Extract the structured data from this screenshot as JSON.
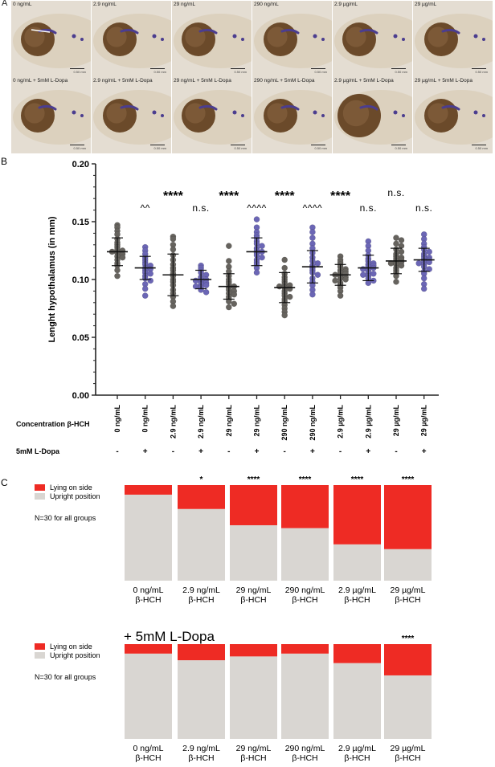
{
  "panel_a": {
    "letter": "A",
    "top_row_labels": [
      "0 ng/mL",
      "2.9 ng/mL",
      "29 ng/mL",
      "290 ng/mL",
      "2.9 µg/mL",
      "29 µg/mL"
    ],
    "bottom_row_labels": [
      "0 ng/mL + 5mM L-Dopa",
      "2.9 ng/mL + 5mM L-Dopa",
      "29 ng/mL + 5mM L-Dopa",
      "290 ng/mL + 5mM L-Dopa",
      "2.9 µg/mL + 5mM L-Dopa",
      "29 µg/mL + 5mM L-Dopa"
    ],
    "scale_bar_text": "0.50 mm",
    "colors": {
      "background": "#e4ddd2",
      "eye": "#6b4a2a",
      "stain": "#4b3d8f"
    }
  },
  "chart_data": [
    {
      "panel": "B",
      "type": "scatter",
      "ylabel": "Lenght hypothalamus (in mm)",
      "ylim": [
        0,
        0.2
      ],
      "yticks": [
        "0.00",
        "0.05",
        "0.10",
        "0.15",
        "0.20"
      ],
      "categories": [
        "0 ng/mL",
        "0 ng/mL",
        "2.9 ng/mL",
        "2.9 ng/mL",
        "29 ng/mL",
        "29 ng/mL",
        "290 ng/mL",
        "290 ng/mL",
        "2.9 µg/mL",
        "2.9 µg/mL",
        "29 µg/mL",
        "29 µg/mL"
      ],
      "ldopa": [
        "-",
        "+",
        "-",
        "+",
        "-",
        "+",
        "-",
        "+",
        "-",
        "+",
        "-",
        "+"
      ],
      "row_labels": {
        "concentration": "Concentration β-HCH",
        "ldopa": "5mM L-Dopa"
      },
      "means": [
        0.124,
        0.11,
        0.104,
        0.1,
        0.094,
        0.124,
        0.093,
        0.111,
        0.104,
        0.11,
        0.116,
        0.117
      ],
      "sd": [
        0.012,
        0.01,
        0.018,
        0.008,
        0.011,
        0.012,
        0.013,
        0.014,
        0.009,
        0.011,
        0.011,
        0.01
      ],
      "points": [
        [
          0.147,
          0.145,
          0.142,
          0.139,
          0.135,
          0.132,
          0.13,
          0.128,
          0.126,
          0.125,
          0.124,
          0.123,
          0.122,
          0.12,
          0.119,
          0.117,
          0.114,
          0.112,
          0.108,
          0.103
        ],
        [
          0.128,
          0.125,
          0.122,
          0.119,
          0.117,
          0.115,
          0.113,
          0.112,
          0.11,
          0.109,
          0.108,
          0.106,
          0.105,
          0.103,
          0.101,
          0.099,
          0.096,
          0.092,
          0.086
        ],
        [
          0.137,
          0.135,
          0.13,
          0.126,
          0.121,
          0.117,
          0.113,
          0.11,
          0.108,
          0.105,
          0.103,
          0.1,
          0.098,
          0.095,
          0.091,
          0.088,
          0.085,
          0.081,
          0.077
        ],
        [
          0.112,
          0.11,
          0.108,
          0.106,
          0.104,
          0.102,
          0.101,
          0.1,
          0.099,
          0.098,
          0.097,
          0.096,
          0.095,
          0.094,
          0.093,
          0.091,
          0.089
        ],
        [
          0.129,
          0.116,
          0.111,
          0.107,
          0.103,
          0.1,
          0.098,
          0.096,
          0.094,
          0.093,
          0.091,
          0.09,
          0.088,
          0.087,
          0.085,
          0.083,
          0.081,
          0.079,
          0.076
        ],
        [
          0.152,
          0.145,
          0.141,
          0.138,
          0.136,
          0.133,
          0.131,
          0.129,
          0.127,
          0.125,
          0.124,
          0.123,
          0.121,
          0.119,
          0.117,
          0.115,
          0.113,
          0.11,
          0.106
        ],
        [
          0.117,
          0.11,
          0.105,
          0.102,
          0.1,
          0.098,
          0.096,
          0.095,
          0.094,
          0.093,
          0.092,
          0.09,
          0.088,
          0.086,
          0.085,
          0.083,
          0.081,
          0.078,
          0.075,
          0.072,
          0.069
        ],
        [
          0.145,
          0.141,
          0.136,
          0.131,
          0.127,
          0.123,
          0.119,
          0.116,
          0.114,
          0.112,
          0.11,
          0.108,
          0.106,
          0.104,
          0.101,
          0.098,
          0.095,
          0.091,
          0.087
        ],
        [
          0.12,
          0.117,
          0.115,
          0.113,
          0.111,
          0.109,
          0.108,
          0.107,
          0.106,
          0.105,
          0.104,
          0.103,
          0.102,
          0.101,
          0.1,
          0.099,
          0.097,
          0.095,
          0.093,
          0.09,
          0.086
        ],
        [
          0.133,
          0.129,
          0.125,
          0.121,
          0.118,
          0.116,
          0.114,
          0.113,
          0.112,
          0.111,
          0.11,
          0.109,
          0.108,
          0.106,
          0.105,
          0.104,
          0.103,
          0.101,
          0.099,
          0.097
        ],
        [
          0.136,
          0.134,
          0.131,
          0.129,
          0.126,
          0.124,
          0.122,
          0.12,
          0.119,
          0.118,
          0.117,
          0.116,
          0.115,
          0.114,
          0.113,
          0.112,
          0.11,
          0.108,
          0.106,
          0.103,
          0.098
        ],
        [
          0.139,
          0.135,
          0.131,
          0.128,
          0.126,
          0.124,
          0.122,
          0.12,
          0.119,
          0.118,
          0.117,
          0.116,
          0.115,
          0.114,
          0.113,
          0.111,
          0.109,
          0.107,
          0.105,
          0.101,
          0.096,
          0.092
        ]
      ],
      "annotations_top": [
        "",
        "^^",
        "****",
        "n.s.",
        "****",
        "^^^^",
        "****",
        "^^^^",
        "****",
        "n.s.",
        "n.s.",
        "n.s."
      ],
      "annotations_level": [
        0,
        1,
        0,
        1,
        0,
        1,
        0,
        1,
        0,
        1,
        0,
        1
      ],
      "colors": {
        "minus": "#66635e",
        "plus": "#6b66b5"
      }
    },
    {
      "panel": "C",
      "type": "bar",
      "stacked": true,
      "title": "",
      "categories": [
        "0 ng/mL\nβ-HCH",
        "2.9 ng/mL\nβ-HCH",
        "29 ng/mL\nβ-HCH",
        "290 ng/mL\nβ-HCH",
        "2.9 µg/mL\nβ-HCH",
        "29 µg/mL\nβ-HCH"
      ],
      "series": [
        {
          "name": "Lying on side",
          "values": [
            0.1,
            0.25,
            0.42,
            0.45,
            0.62,
            0.67
          ]
        },
        {
          "name": "Upright position",
          "values": [
            0.9,
            0.75,
            0.58,
            0.55,
            0.38,
            0.33
          ]
        }
      ],
      "significance": [
        "",
        "*",
        "****",
        "****",
        "****",
        "****"
      ],
      "note": "N=30 for all groups"
    },
    {
      "panel": "C2",
      "type": "bar",
      "stacked": true,
      "title": "+ 5mM L-Dopa",
      "categories": [
        "0 ng/mL\nβ-HCH",
        "2.9 ng/mL\nβ-HCH",
        "29 ng/mL\nβ-HCH",
        "290 ng/mL\nβ-HCH",
        "2.9 µg/mL\nβ-HCH",
        "29 µg/mL\nβ-HCH"
      ],
      "series": [
        {
          "name": "Lying on side",
          "values": [
            0.1,
            0.17,
            0.13,
            0.1,
            0.2,
            0.33
          ]
        },
        {
          "name": "Upright position",
          "values": [
            0.9,
            0.83,
            0.87,
            0.9,
            0.8,
            0.67
          ]
        }
      ],
      "significance": [
        "",
        "",
        "",
        "",
        "",
        "****"
      ],
      "note": "N=30 for all groups"
    }
  ],
  "colors": {
    "lying": "#ee2b24",
    "upright": "#d9d6d2"
  }
}
